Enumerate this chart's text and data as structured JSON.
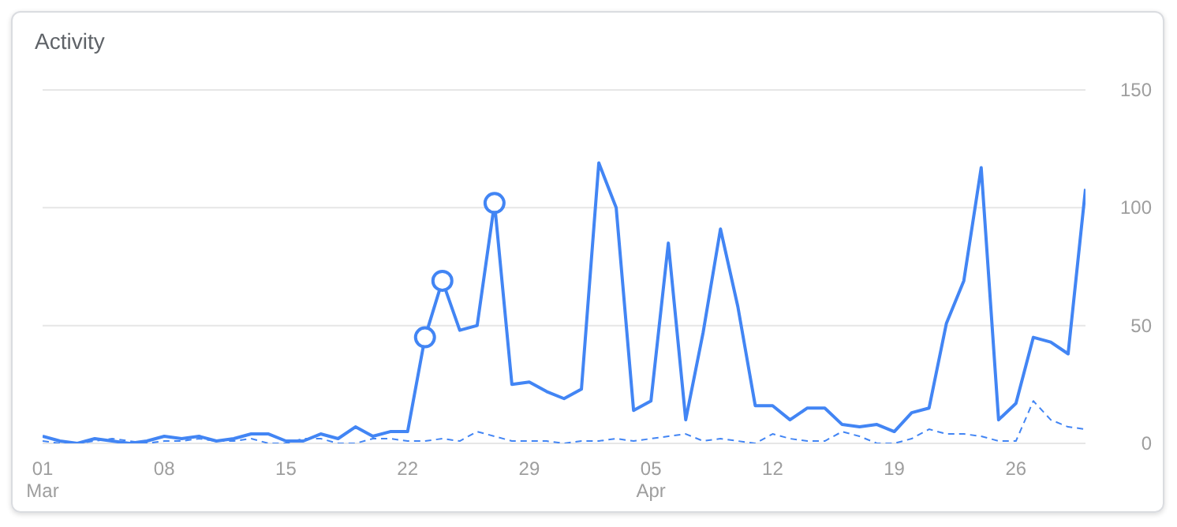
{
  "chart_data": {
    "type": "line",
    "title": "Activity",
    "x": [
      "--03-01",
      "--03-02",
      "--03-03",
      "--03-04",
      "--03-05",
      "--03-06",
      "--03-07",
      "--03-08",
      "--03-09",
      "--03-10",
      "--03-11",
      "--03-12",
      "--03-13",
      "--03-14",
      "--03-15",
      "--03-16",
      "--03-17",
      "--03-18",
      "--03-19",
      "--03-20",
      "--03-21",
      "--03-22",
      "--03-23",
      "--03-24",
      "--03-25",
      "--03-26",
      "--03-27",
      "--03-28",
      "--03-29",
      "--03-30",
      "--03-31",
      "--04-01",
      "--04-02",
      "--04-03",
      "--04-04",
      "--04-05",
      "--04-06",
      "--04-07",
      "--04-08",
      "--04-09",
      "--04-10",
      "--04-11",
      "--04-12",
      "--04-13",
      "--04-14",
      "--04-15",
      "--04-16",
      "--04-17",
      "--04-18",
      "--04-19",
      "--04-20",
      "--04-21",
      "--04-22",
      "--04-23",
      "--04-24",
      "--04-25",
      "--04-26",
      "--04-27",
      "--04-28",
      "--04-29",
      "--04-30"
    ],
    "series": [
      {
        "color": "#4285f4",
        "line_style": "solid",
        "values": [
          3,
          1,
          0,
          2,
          1,
          0,
          1,
          3,
          2,
          3,
          1,
          2,
          4,
          4,
          1,
          1,
          4,
          2,
          7,
          3,
          5,
          5,
          45,
          69,
          48,
          50,
          102,
          25,
          26,
          22,
          19,
          23,
          119,
          100,
          14,
          18,
          85,
          10,
          47,
          91,
          58,
          16,
          16,
          10,
          15,
          15,
          8,
          7,
          8,
          5,
          13,
          15,
          51,
          69,
          117,
          10,
          17,
          45,
          43,
          38,
          108
        ]
      },
      {
        "color": "#4285f4",
        "line_style": "dashed",
        "values": [
          1,
          0,
          0,
          1,
          2,
          1,
          0,
          1,
          1,
          2,
          1,
          1,
          2,
          0,
          0,
          2,
          2,
          0,
          0,
          2,
          2,
          1,
          1,
          2,
          1,
          5,
          3,
          1,
          1,
          1,
          0,
          1,
          1,
          2,
          1,
          2,
          3,
          4,
          1,
          2,
          1,
          0,
          4,
          2,
          1,
          1,
          5,
          3,
          0,
          0,
          2,
          6,
          4,
          4,
          3,
          1,
          1,
          18,
          10,
          7,
          6
        ]
      },
      {
        "type": "scatter",
        "color": "#4285f4",
        "marker": "circle",
        "x": [
          "--03-23",
          "--03-24",
          "--03-27"
        ],
        "values": [
          45,
          69,
          102
        ]
      }
    ],
    "xlim": [
      "--03-01",
      "--04-30"
    ],
    "xticks": [
      {
        "value": "--03-01",
        "label": "01 Mar"
      },
      {
        "value": "--03-08",
        "label": "08"
      },
      {
        "value": "--03-15",
        "label": "15"
      },
      {
        "value": "--03-22",
        "label": "22"
      },
      {
        "value": "--03-29",
        "label": "29"
      },
      {
        "value": "--04-05",
        "label": "05 Apr"
      },
      {
        "value": "--04-12",
        "label": "12"
      },
      {
        "value": "--04-19",
        "label": "19"
      },
      {
        "value": "--04-26",
        "label": "26"
      }
    ],
    "ylim": [
      0,
      150
    ],
    "yticks": [
      0,
      50,
      100,
      150
    ],
    "grid": "y"
  }
}
